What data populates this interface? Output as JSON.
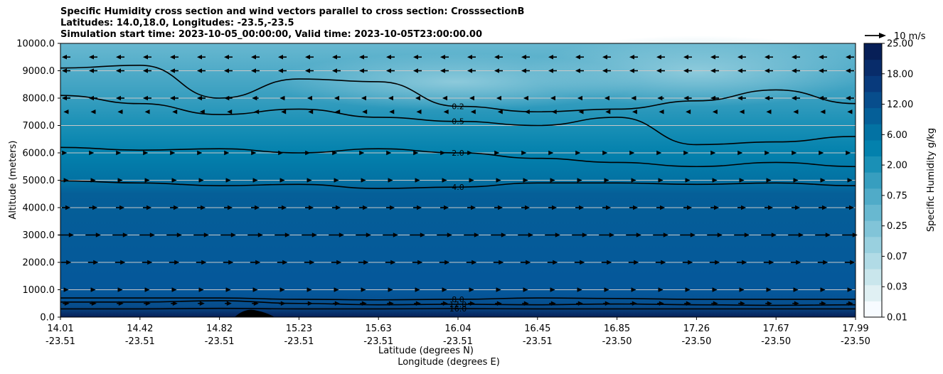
{
  "chart_data": {
    "type": "heatmap",
    "title_lines": [
      "Specific Humidity cross section and wind vectors parallel to cross section: CrosssectionB",
      "Latitudes: 14.0,18.0, Longitudes: -23.5,-23.5",
      "Simulation start time: 2023-10-05_00:00:00, Valid time: 2023-10-05T23:00:00.00"
    ],
    "ylabel": "Altitude (meters)",
    "xlabel_lines": [
      "Latitude (degrees N)",
      "Longitude (degrees E)"
    ],
    "ylim": [
      0,
      10000
    ],
    "yticks": [
      "0.0",
      "1000.0",
      "2000.0",
      "3000.0",
      "4000.0",
      "5000.0",
      "6000.0",
      "7000.0",
      "8000.0",
      "9000.0",
      "10000.0"
    ],
    "xlim": [
      14.01,
      17.99
    ],
    "xticks": [
      {
        "lat": "14.01",
        "lon": "-23.51"
      },
      {
        "lat": "14.42",
        "lon": "-23.51"
      },
      {
        "lat": "14.82",
        "lon": "-23.51"
      },
      {
        "lat": "15.23",
        "lon": "-23.51"
      },
      {
        "lat": "15.63",
        "lon": "-23.51"
      },
      {
        "lat": "16.04",
        "lon": "-23.51"
      },
      {
        "lat": "16.45",
        "lon": "-23.51"
      },
      {
        "lat": "16.85",
        "lon": "-23.50"
      },
      {
        "lat": "17.26",
        "lon": "-23.50"
      },
      {
        "lat": "17.67",
        "lon": "-23.50"
      },
      {
        "lat": "17.99",
        "lon": "-23.50"
      }
    ],
    "grid": "horizontal",
    "colorbar": {
      "label": "Specific Humidity g/kg",
      "tick_labels": [
        "0.01",
        "0.03",
        "0.07",
        "0.25",
        "0.75",
        "2.00",
        "6.00",
        "12.00",
        "18.00",
        "25.00"
      ],
      "colors": [
        "#f7fbff",
        "#e0f0f3",
        "#c9e6ec",
        "#b1dbe6",
        "#99d0df",
        "#81c4d8",
        "#68b8d0",
        "#50abc8",
        "#379ebf",
        "#1a90b6",
        "#0381ad",
        "#0372a3",
        "#055f98",
        "#074d8c",
        "#083a7c",
        "#082c6a",
        "#071f57"
      ]
    },
    "quiver_key": {
      "label": "10 m/s"
    },
    "contours": [
      {
        "level": "16.0",
        "label": "16.0",
        "altitude": [
          300,
          300,
          320,
          300,
          300,
          310,
          300,
          300,
          300,
          300,
          300
        ]
      },
      {
        "level": "12.0",
        "label": "12.0",
        "altitude": [
          550,
          550,
          600,
          500,
          450,
          470,
          450,
          480,
          450,
          430,
          450
        ]
      },
      {
        "level": "8.0",
        "label": "8.0",
        "altitude": [
          700,
          700,
          700,
          650,
          630,
          650,
          700,
          680,
          650,
          650,
          650
        ]
      },
      {
        "level": "4.0",
        "label": "4.0",
        "altitude": [
          4980,
          4900,
          4800,
          4850,
          4700,
          4750,
          4900,
          4900,
          4850,
          4900,
          4800
        ]
      },
      {
        "level": "2.0",
        "label": "2.0",
        "altitude": [
          6200,
          6100,
          6150,
          6000,
          6150,
          6000,
          5800,
          5650,
          5500,
          5650,
          5500
        ]
      },
      {
        "level": "0.5",
        "label": "0.5",
        "altitude": [
          8100,
          7800,
          7400,
          7600,
          7300,
          7150,
          7000,
          7300,
          6300,
          6400,
          6600
        ]
      },
      {
        "level": "0.2",
        "label": "0.2",
        "altitude": [
          9100,
          9200,
          8000,
          8700,
          8600,
          7700,
          7500,
          7600,
          7900,
          8300,
          7800
        ]
      }
    ],
    "wind_rows": [
      {
        "altitude": 9500,
        "u": [
          -1,
          -1,
          -1,
          -1,
          -1,
          -1,
          -1,
          -1,
          -1,
          -1,
          -1
        ]
      },
      {
        "altitude": 9000,
        "u": [
          -1,
          -1,
          -1,
          -1,
          -1,
          -1,
          -1,
          -1,
          -1,
          -1,
          -1
        ]
      },
      {
        "altitude": 8000,
        "u": [
          -1,
          -1,
          -1,
          -0.5,
          -0.5,
          -0.5,
          -0.5,
          -0.5,
          -1,
          -1,
          -1
        ]
      },
      {
        "altitude": 7500,
        "u": [
          -0.6,
          -0.6,
          -0.3,
          -0.3,
          -0.3,
          -0.2,
          -0.2,
          -0.3,
          -0.5,
          -0.6,
          -0.6
        ]
      },
      {
        "altitude": 6000,
        "u": [
          0.2,
          0.2,
          0.2,
          0.2,
          0.2,
          0.2,
          0.2,
          0.2,
          0.2,
          0.2,
          0.2
        ]
      },
      {
        "altitude": 5000,
        "u": [
          0.6,
          0.6,
          0.6,
          0.6,
          0.6,
          0.6,
          0.6,
          0.6,
          0.6,
          0.6,
          0.6
        ]
      },
      {
        "altitude": 4000,
        "u": [
          1,
          1,
          1,
          1,
          1,
          1,
          1,
          1,
          1,
          1,
          1
        ]
      },
      {
        "altitude": 3000,
        "u": [
          1.8,
          1.8,
          1.8,
          1.8,
          1.8,
          1.8,
          1.8,
          1.8,
          1.8,
          1.8,
          1.8
        ]
      },
      {
        "altitude": 2000,
        "u": [
          1.2,
          1.2,
          1.2,
          1.2,
          1.2,
          1.2,
          1.2,
          1.2,
          1.2,
          1.2,
          1.2
        ]
      },
      {
        "altitude": 1000,
        "u": [
          0.6,
          0.6,
          0.6,
          0.6,
          0.6,
          0.6,
          0.6,
          0.6,
          0.6,
          0.6,
          0.6
        ]
      },
      {
        "altitude": 500,
        "u": [
          0.8,
          0.8,
          0.8,
          0.8,
          0.8,
          0.8,
          0.8,
          0.8,
          0.8,
          0.8,
          0.8
        ]
      }
    ]
  }
}
